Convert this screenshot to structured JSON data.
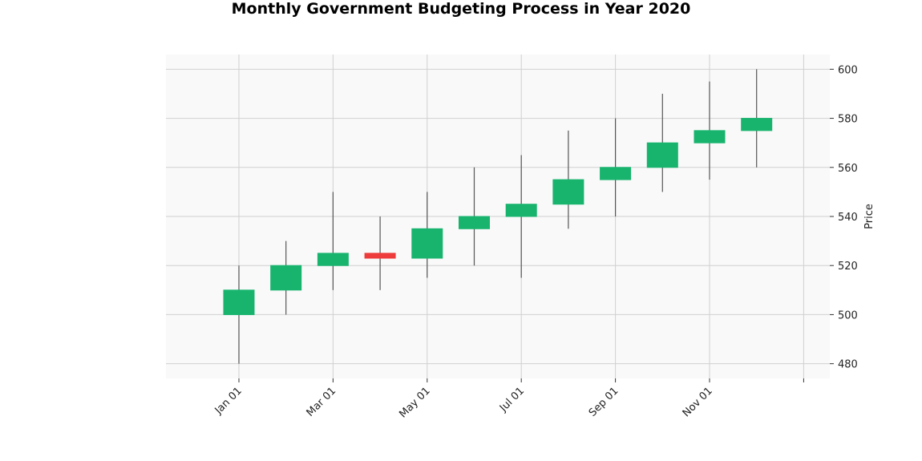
{
  "chart_data": {
    "type": "candlestick",
    "title": "Monthly Government Budgeting Process in Year 2020",
    "ylabel": "Price",
    "xlabel": "",
    "ylim": [
      474,
      606
    ],
    "y_ticks": [
      480,
      500,
      520,
      540,
      560,
      580,
      600
    ],
    "x_tick_labels": [
      "Jan 01",
      "Mar 01",
      "May 01",
      "Jul 01",
      "Sep 01",
      "Nov 01",
      ""
    ],
    "x_tick_month_index": [
      0,
      2,
      4,
      6,
      8,
      10,
      12
    ],
    "grid": true,
    "colors": {
      "up": "#18b46e",
      "down": "#ee3b3b",
      "wick": "#555555",
      "grid": "#d0d0d0",
      "plot_bg": "#f9f9f9"
    },
    "candles": [
      {
        "date": "2020-01-01",
        "open": 500,
        "high": 520,
        "low": 480,
        "close": 510
      },
      {
        "date": "2020-02-01",
        "open": 510,
        "high": 530,
        "low": 500,
        "close": 520
      },
      {
        "date": "2020-03-01",
        "open": 520,
        "high": 550,
        "low": 510,
        "close": 525
      },
      {
        "date": "2020-04-01",
        "open": 525,
        "high": 540,
        "low": 510,
        "close": 523
      },
      {
        "date": "2020-05-01",
        "open": 523,
        "high": 550,
        "low": 515,
        "close": 535
      },
      {
        "date": "2020-06-01",
        "open": 535,
        "high": 560,
        "low": 520,
        "close": 540
      },
      {
        "date": "2020-07-01",
        "open": 540,
        "high": 565,
        "low": 515,
        "close": 545
      },
      {
        "date": "2020-08-01",
        "open": 545,
        "high": 575,
        "low": 535,
        "close": 555
      },
      {
        "date": "2020-09-01",
        "open": 555,
        "high": 580,
        "low": 540,
        "close": 560
      },
      {
        "date": "2020-10-01",
        "open": 560,
        "high": 590,
        "low": 550,
        "close": 570
      },
      {
        "date": "2020-11-01",
        "open": 570,
        "high": 595,
        "low": 555,
        "close": 575
      },
      {
        "date": "2020-12-01",
        "open": 575,
        "high": 600,
        "low": 560,
        "close": 580
      }
    ]
  }
}
